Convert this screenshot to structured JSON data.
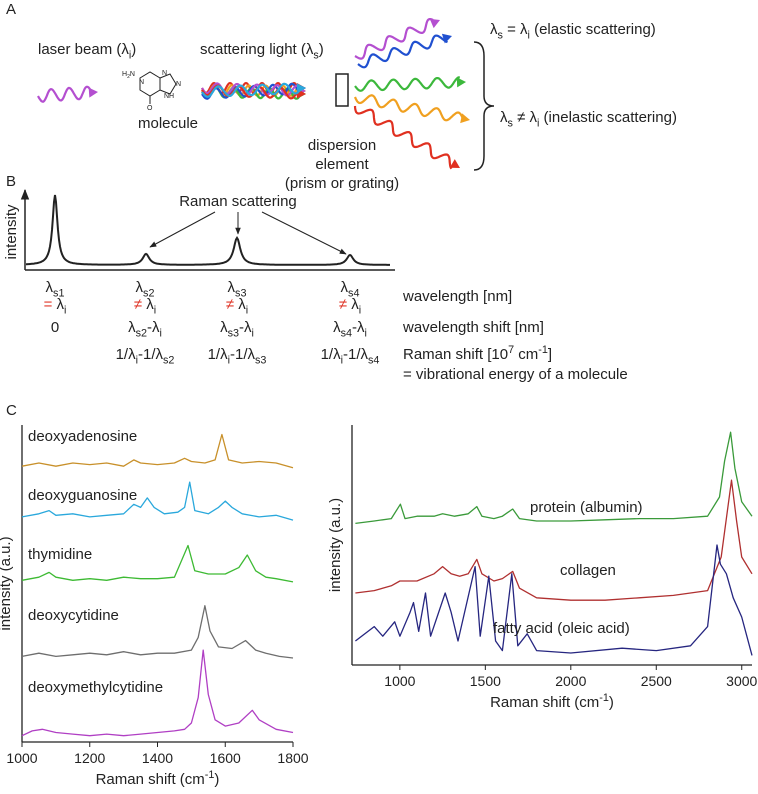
{
  "panel_labels": [
    "A",
    "B",
    "C"
  ],
  "panel_a": {
    "laser_beam": [
      "laser beam (λ",
      {
        "sub": "i"
      },
      ")"
    ],
    "atoms": [
      [
        "H",
        {
          "sub": "2"
        },
        "N"
      ],
      [
        "N"
      ],
      [
        "N"
      ],
      [
        "N"
      ],
      [
        "NH"
      ],
      [
        "O"
      ]
    ],
    "molecule": [
      "molecule"
    ],
    "scattering_light": [
      "scattering light (λ",
      {
        "sub": "s"
      },
      ")"
    ],
    "dispersion": [
      [
        "dispersion"
      ],
      [
        "element"
      ],
      [
        "(prism or grating)"
      ]
    ],
    "elastic": [
      "λ",
      {
        "sub": "s"
      },
      " = λ",
      {
        "sub": "i"
      },
      " (elastic scattering)"
    ],
    "inelastic": [
      "λ",
      {
        "sub": "s"
      },
      " ≠ λ",
      {
        "sub": "i"
      },
      " (inelastic scattering)"
    ]
  },
  "panel_b": {
    "y_label": [
      "intensity"
    ],
    "annotation": [
      "Raman scattering"
    ],
    "columns": [
      {
        "wavelength": [
          "λ",
          {
            "sub": "s1"
          }
        ],
        "relation": [
          {
            "text": "=",
            "color": "#e0392b"
          },
          " λ",
          {
            "sub": "i"
          }
        ],
        "shift": [
          "0"
        ]
      },
      {
        "wavelength": [
          "λ",
          {
            "sub": "s2"
          }
        ],
        "relation": [
          {
            "text": "≠",
            "color": "#e0392b"
          },
          " λ",
          {
            "sub": "i"
          }
        ],
        "shift": [
          "λ",
          {
            "sub": "s2"
          },
          "-λ",
          {
            "sub": "i"
          }
        ],
        "raman": [
          "1/λ",
          {
            "sub": "i"
          },
          "-1/λ",
          {
            "sub": "s2"
          }
        ]
      },
      {
        "wavelength": [
          "λ",
          {
            "sub": "s3"
          }
        ],
        "relation": [
          {
            "text": "≠",
            "color": "#e0392b"
          },
          " λ",
          {
            "sub": "i"
          }
        ],
        "shift": [
          "λ",
          {
            "sub": "s3"
          },
          "-λ",
          {
            "sub": "i"
          }
        ],
        "raman": [
          "1/λ",
          {
            "sub": "i"
          },
          "-1/λ",
          {
            "sub": "s3"
          }
        ]
      },
      {
        "wavelength": [
          "λ",
          {
            "sub": "s4"
          }
        ],
        "relation": [
          {
            "text": "≠",
            "color": "#e0392b"
          },
          " λ",
          {
            "sub": "i"
          }
        ],
        "shift": [
          "λ",
          {
            "sub": "s4"
          },
          "-λ",
          {
            "sub": "i"
          }
        ],
        "raman": [
          "1/λ",
          {
            "sub": "i"
          },
          "-1/λ",
          {
            "sub": "s4"
          }
        ]
      }
    ],
    "row_labels": [
      [
        "wavelength [nm]"
      ],
      [
        "wavelength shift [nm]"
      ],
      [
        "Raman shift [10",
        {
          "sup": "7"
        },
        " cm",
        {
          "sup": "-1"
        },
        "]"
      ],
      [
        "= vibrational energy of a molecule"
      ]
    ]
  },
  "chart_data": [
    {
      "type": "line",
      "x_label": [
        "Raman shift (cm",
        {
          "sup": "-1"
        },
        ")"
      ],
      "y_label": [
        "intensity (a.u.)"
      ],
      "xlim": [
        1000,
        1800
      ],
      "xticks": [
        1000,
        1200,
        1400,
        1600,
        1800
      ],
      "ylim": [
        0,
        100
      ],
      "series": [
        {
          "name": "deoxyadenosine",
          "color": "#c8902a",
          "x": [
            1000,
            1050,
            1100,
            1150,
            1200,
            1250,
            1300,
            1330,
            1350,
            1400,
            1450,
            1480,
            1500,
            1540,
            1570,
            1590,
            1610,
            1650,
            1700,
            1750,
            1800
          ],
          "values": [
            87,
            88,
            87,
            88,
            87.5,
            88,
            87,
            89,
            88,
            87.5,
            88,
            89.5,
            88.5,
            88,
            89,
            97,
            89,
            88,
            88.5,
            88,
            86.5
          ]
        },
        {
          "name": "deoxyguanosine",
          "color": "#2aa8dc",
          "x": [
            1000,
            1050,
            1080,
            1100,
            1150,
            1200,
            1250,
            1300,
            1330,
            1350,
            1370,
            1390,
            1420,
            1460,
            1480,
            1495,
            1510,
            1550,
            1580,
            1600,
            1620,
            1650,
            1700,
            1750,
            1800
          ],
          "values": [
            71,
            72,
            73,
            71.5,
            72,
            71,
            71.5,
            72,
            75,
            74,
            77,
            74,
            72,
            72.5,
            74,
            82,
            73,
            72,
            74,
            76,
            74,
            72,
            71,
            71.5,
            70
          ]
        },
        {
          "name": "thymidine",
          "color": "#3dba33",
          "x": [
            1000,
            1050,
            1080,
            1100,
            1150,
            1200,
            1250,
            1300,
            1350,
            1400,
            1450,
            1490,
            1510,
            1550,
            1600,
            1640,
            1665,
            1690,
            1720,
            1750,
            1800
          ],
          "values": [
            51,
            52,
            53.5,
            52,
            51,
            51.5,
            51,
            52,
            51.5,
            51.5,
            52,
            62,
            54,
            53,
            53,
            55,
            59,
            54,
            52,
            51.5,
            50.5
          ]
        },
        {
          "name": "deoxycytidine",
          "color": "#6e6e6e",
          "x": [
            1000,
            1050,
            1100,
            1150,
            1200,
            1250,
            1300,
            1350,
            1400,
            1450,
            1500,
            1520,
            1540,
            1555,
            1580,
            1620,
            1660,
            1690,
            1720,
            1760,
            1800
          ],
          "values": [
            27,
            28,
            27,
            27.5,
            28,
            27.5,
            28.5,
            27.5,
            28,
            28,
            29,
            33,
            43,
            35,
            30,
            29.5,
            32,
            29,
            28,
            27,
            26.5
          ]
        },
        {
          "name": "deoxymethylcytidine",
          "color": "#b03fc4",
          "x": [
            1000,
            1030,
            1060,
            1100,
            1150,
            1200,
            1250,
            1300,
            1350,
            1400,
            1450,
            1480,
            1500,
            1520,
            1535,
            1550,
            1570,
            1600,
            1640,
            1680,
            1700,
            1750,
            1800
          ],
          "values": [
            2,
            3.5,
            4,
            3,
            2.5,
            2,
            2.5,
            2,
            2.5,
            3,
            3.5,
            4,
            6,
            14,
            29,
            15,
            7,
            5,
            6,
            10,
            7,
            4,
            3
          ]
        }
      ]
    },
    {
      "type": "line",
      "x_label": [
        "Raman shift (cm",
        {
          "sup": "-1"
        },
        ")"
      ],
      "y_label": [
        "intensity (a.u.)"
      ],
      "xlim": [
        720,
        3060
      ],
      "xticks": [
        1000,
        1500,
        2000,
        2500,
        3000
      ],
      "ylim": [
        0,
        100
      ],
      "series": [
        {
          "name": "protein (albumin)",
          "color": "#3a9a3a",
          "x": [
            740,
            850,
            950,
            1003,
            1030,
            1100,
            1200,
            1250,
            1320,
            1400,
            1450,
            1480,
            1550,
            1600,
            1660,
            1700,
            1800,
            2000,
            2200,
            2400,
            2600,
            2800,
            2870,
            2900,
            2935,
            2960,
            3000,
            3060
          ],
          "values": [
            59,
            60,
            61,
            67,
            61,
            62,
            62,
            63,
            62,
            63,
            66,
            62,
            61,
            62,
            65,
            61,
            60,
            60,
            60.5,
            61,
            61,
            62,
            70,
            85,
            97,
            82,
            68,
            62
          ]
        },
        {
          "name": "collagen",
          "color": "#b03030",
          "x": [
            740,
            850,
            950,
            1000,
            1100,
            1200,
            1250,
            1300,
            1350,
            1400,
            1450,
            1480,
            1550,
            1600,
            1660,
            1700,
            1800,
            2000,
            2200,
            2400,
            2600,
            2800,
            2880,
            2940,
            2970,
            3000,
            3060
          ],
          "values": [
            30,
            31,
            33,
            35,
            35,
            38,
            41,
            38,
            37,
            38,
            44,
            38,
            35,
            36,
            39,
            32,
            28,
            27,
            27,
            28,
            29,
            31,
            45,
            77,
            60,
            45,
            38
          ]
        },
        {
          "name": "fatty acid (oleic acid)",
          "color": "#262680",
          "x": [
            740,
            850,
            900,
            970,
            1000,
            1060,
            1080,
            1110,
            1150,
            1180,
            1265,
            1300,
            1340,
            1440,
            1470,
            1520,
            1560,
            1600,
            1655,
            1690,
            1745,
            1800,
            2000,
            2300,
            2500,
            2700,
            2800,
            2855,
            2875,
            2910,
            2950,
            3000,
            3060
          ],
          "values": [
            10,
            16,
            12,
            18,
            12,
            22,
            26,
            14,
            30,
            12,
            30,
            22,
            10,
            41,
            12,
            37,
            10,
            6,
            38,
            8,
            13,
            6,
            5,
            7,
            6,
            8,
            16,
            50,
            42,
            38,
            28,
            20,
            4
          ]
        }
      ]
    }
  ]
}
